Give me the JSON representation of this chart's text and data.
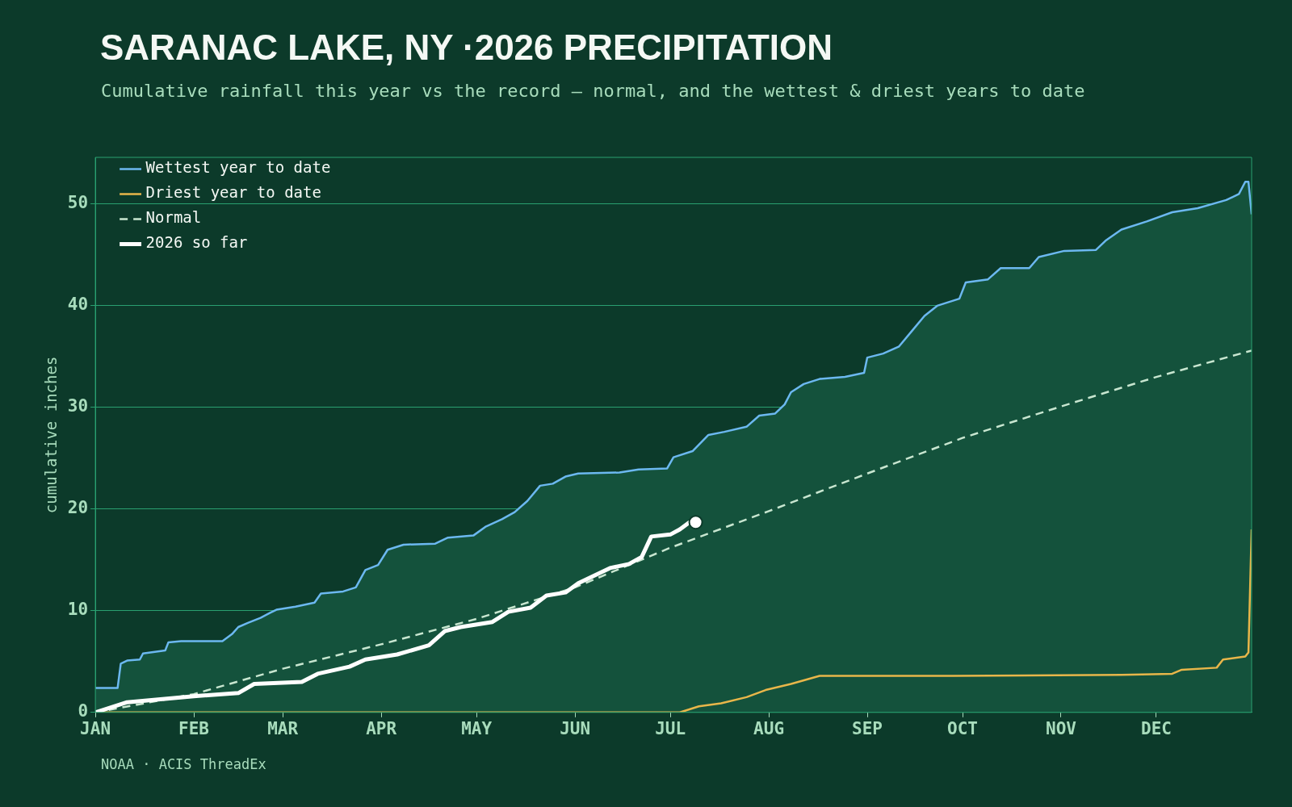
{
  "chart_data": {
    "type": "line",
    "title": "SARANAC LAKE, NY ·2026 PRECIPITATION",
    "subtitle": "Cumulative rainfall this year vs the record — normal, and the wettest & driest years to date",
    "ylabel": "cumulative inches",
    "annotations": [
      "NOAA · ACIS ThreadEx"
    ],
    "xlim": [
      "--01-01",
      "--12-31"
    ],
    "xticks": [
      {
        "value": "--01-01",
        "label": "JAN"
      },
      {
        "value": "--02-01",
        "label": "FEB"
      },
      {
        "value": "--03-01",
        "label": "MAR"
      },
      {
        "value": "--04-01",
        "label": "APR"
      },
      {
        "value": "--05-01",
        "label": "MAY"
      },
      {
        "value": "--06-01",
        "label": "JUN"
      },
      {
        "value": "--07-01",
        "label": "JUL"
      },
      {
        "value": "--08-01",
        "label": "AUG"
      },
      {
        "value": "--09-01",
        "label": "SEP"
      },
      {
        "value": "--10-01",
        "label": "OCT"
      },
      {
        "value": "--11-01",
        "label": "NOV"
      },
      {
        "value": "--12-01",
        "label": "DEC"
      }
    ],
    "ylim": [
      0,
      54.6
    ],
    "yticks": [
      0,
      10,
      20,
      30,
      40,
      50
    ],
    "grid": "y",
    "legend": "top left",
    "series": [
      {
        "name": "Wettest year to date",
        "type": "area",
        "color": "#6cb8f0",
        "line_style": "solid",
        "x": [
          "--01-01",
          "--01-08",
          "--01-09",
          "--01-11",
          "--01-15",
          "--01-16",
          "--01-23",
          "--01-24",
          "--01-28",
          "--02-10",
          "--02-13",
          "--02-15",
          "--02-18",
          "--02-22",
          "--02-25",
          "--02-27",
          "--03-05",
          "--03-11",
          "--03-13",
          "--03-20",
          "--03-24",
          "--03-27",
          "--03-31",
          "--04-03",
          "--04-08",
          "--04-18",
          "--04-22",
          "--04-30",
          "--05-04",
          "--05-09",
          "--05-13",
          "--05-17",
          "--05-21",
          "--05-25",
          "--05-29",
          "--06-02",
          "--06-15",
          "--06-21",
          "--06-30",
          "--07-02",
          "--07-08",
          "--07-13",
          "--07-18",
          "--07-25",
          "--07-29",
          "--08-03",
          "--08-06",
          "--08-08",
          "--08-12",
          "--08-17",
          "--08-25",
          "--08-31",
          "--09-01",
          "--09-06",
          "--09-11",
          "--09-15",
          "--09-19",
          "--09-23",
          "--09-30",
          "--10-02",
          "--10-09",
          "--10-13",
          "--10-22",
          "--10-25",
          "--11-02",
          "--11-12",
          "--11-15",
          "--11-20",
          "--11-28",
          "--12-06",
          "--12-14",
          "--12-23",
          "--12-27",
          "--12-29",
          "--12-30",
          "--12-31"
        ],
        "values": [
          2.4,
          2.4,
          4.8,
          5.1,
          5.2,
          5.8,
          6.1,
          6.9,
          7.0,
          7.0,
          7.7,
          8.4,
          8.8,
          9.3,
          9.8,
          10.1,
          10.4,
          10.8,
          11.7,
          11.9,
          12.3,
          14.0,
          14.5,
          16.0,
          16.5,
          16.6,
          17.2,
          17.4,
          18.3,
          19.0,
          19.7,
          20.8,
          22.3,
          22.5,
          23.2,
          23.5,
          23.6,
          23.9,
          24.0,
          25.1,
          25.7,
          27.3,
          27.6,
          28.1,
          29.2,
          29.4,
          30.3,
          31.5,
          32.3,
          32.8,
          33.0,
          33.4,
          34.9,
          35.3,
          36.0,
          37.5,
          39.0,
          40.0,
          40.7,
          42.3,
          42.6,
          43.7,
          43.7,
          44.8,
          45.4,
          45.5,
          46.4,
          47.5,
          48.3,
          49.2,
          49.6,
          50.4,
          51.0,
          52.2,
          52.2,
          49.0
        ]
      },
      {
        "name": "Driest year to date",
        "color": "#e8b64a",
        "line_style": "solid",
        "x": [
          "--01-01",
          "--07-04",
          "--07-10",
          "--07-17",
          "--07-25",
          "--07-31",
          "--08-08",
          "--08-17",
          "--09-28",
          "--11-20",
          "--12-06",
          "--12-09",
          "--12-20",
          "--12-22",
          "--12-29",
          "--12-30",
          "--12-31"
        ],
        "values": [
          0,
          0,
          0.6,
          0.9,
          1.5,
          2.2,
          2.8,
          3.6,
          3.6,
          3.7,
          3.8,
          4.2,
          4.4,
          5.2,
          5.5,
          5.9,
          18.0
        ]
      },
      {
        "name": "Normal",
        "color": "#c8e6d0",
        "line_style": "dashed",
        "x": [
          "--01-01",
          "--02-01",
          "--03-01",
          "--04-01",
          "--05-01",
          "--06-01",
          "--07-01",
          "--08-01",
          "--09-01",
          "--10-01",
          "--11-01",
          "--12-01",
          "--12-31"
        ],
        "values": [
          0,
          1.8,
          4.3,
          6.7,
          9.2,
          12.3,
          16.2,
          19.8,
          23.5,
          27.0,
          30.1,
          33.0,
          35.6
        ]
      },
      {
        "name": "2026 so far",
        "color": "#ffffff",
        "line_style": "solid",
        "x": [
          "--01-01",
          "--01-11",
          "--02-01",
          "--02-15",
          "--02-20",
          "--03-07",
          "--03-12",
          "--03-22",
          "--03-27",
          "--04-06",
          "--04-16",
          "--04-21",
          "--04-26",
          "--05-06",
          "--05-11",
          "--05-18",
          "--05-23",
          "--05-29",
          "--06-02",
          "--06-06",
          "--06-12",
          "--06-18",
          "--06-22",
          "--06-25",
          "--07-01",
          "--07-04",
          "--07-07",
          "--07-09"
        ],
        "values": [
          0,
          1.0,
          1.6,
          1.9,
          2.8,
          3.0,
          3.8,
          4.5,
          5.2,
          5.7,
          6.6,
          8.0,
          8.4,
          8.9,
          9.9,
          10.3,
          11.5,
          11.8,
          12.7,
          13.3,
          14.2,
          14.6,
          15.3,
          17.3,
          17.5,
          18.0,
          18.7,
          18.7
        ]
      },
      {
        "type": "scatter",
        "color": "#ffffff",
        "marker": "circle",
        "x": [
          "--07-09"
        ],
        "values": [
          18.7
        ]
      }
    ]
  }
}
